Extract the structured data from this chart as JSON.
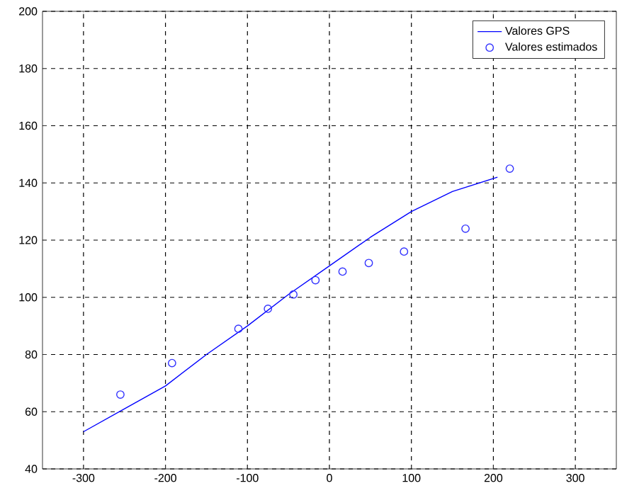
{
  "chart_data": {
    "type": "line",
    "xlim": [
      -350,
      350
    ],
    "xticks": [
      -300,
      -200,
      -100,
      0,
      100,
      200,
      300
    ],
    "ylim": [
      40,
      200
    ],
    "yticks": [
      40,
      60,
      80,
      100,
      120,
      140,
      160,
      180,
      200
    ],
    "grid": true,
    "legend": "top right",
    "series": [
      {
        "name": "Valores GPS",
        "color": "#0000ff",
        "marker": "none",
        "x": [
          -300,
          -250,
          -200,
          -150,
          -100,
          -50,
          0,
          50,
          100,
          150,
          205
        ],
        "values": [
          53,
          61,
          69,
          80,
          90,
          101,
          111,
          121,
          130,
          137,
          142
        ]
      },
      {
        "name": "Valores estimados",
        "type": "scatter",
        "color": "#3333ff",
        "marker": "circle",
        "x": [
          -255,
          -192,
          -111,
          -75,
          -44,
          -17,
          16,
          48,
          91,
          166,
          220
        ],
        "values": [
          66,
          77,
          89,
          96,
          101,
          106,
          109,
          112,
          116,
          124,
          145
        ]
      }
    ]
  }
}
